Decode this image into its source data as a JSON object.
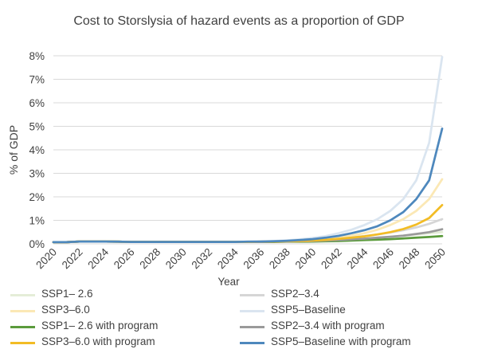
{
  "chart_data": {
    "type": "line",
    "title": "Cost to Storslysia of hazard events as a proportion of GDP",
    "xlabel": "Year",
    "ylabel": "% of GDP",
    "ylim": [
      0,
      8
    ],
    "yticks": [
      "0%",
      "1%",
      "2%",
      "3%",
      "4%",
      "5%",
      "6%",
      "7%",
      "8%"
    ],
    "xticks": [
      "2020",
      "2022",
      "2024",
      "2026",
      "2028",
      "2030",
      "2032",
      "2034",
      "2036",
      "2038",
      "2040",
      "2042",
      "2044",
      "2046",
      "2048",
      "2050"
    ],
    "grid": true,
    "legend_position": "bottom",
    "x": [
      2020,
      2021,
      2022,
      2023,
      2024,
      2025,
      2026,
      2027,
      2028,
      2029,
      2030,
      2031,
      2032,
      2033,
      2034,
      2035,
      2036,
      2037,
      2038,
      2039,
      2040,
      2041,
      2042,
      2043,
      2044,
      2045,
      2046,
      2047,
      2048,
      2049,
      2050
    ],
    "series": [
      {
        "name": "SSP1– 2.6",
        "color": "#e5edd8",
        "values": [
          0.07,
          0.07,
          0.1,
          0.1,
          0.1,
          0.09,
          0.08,
          0.08,
          0.08,
          0.08,
          0.08,
          0.08,
          0.08,
          0.08,
          0.08,
          0.08,
          0.08,
          0.09,
          0.1,
          0.11,
          0.12,
          0.14,
          0.16,
          0.19,
          0.22,
          0.26,
          0.3,
          0.35,
          0.4,
          0.45,
          0.5
        ]
      },
      {
        "name": "SSP2–3.4",
        "color": "#d6d6d6",
        "values": [
          0.07,
          0.07,
          0.1,
          0.1,
          0.1,
          0.09,
          0.08,
          0.08,
          0.08,
          0.08,
          0.08,
          0.08,
          0.08,
          0.08,
          0.08,
          0.08,
          0.09,
          0.1,
          0.11,
          0.13,
          0.15,
          0.18,
          0.22,
          0.27,
          0.33,
          0.4,
          0.48,
          0.58,
          0.7,
          0.85,
          1.05
        ]
      },
      {
        "name": "SSP3–6.0",
        "color": "#fbe8b5",
        "values": [
          0.07,
          0.07,
          0.1,
          0.1,
          0.1,
          0.09,
          0.08,
          0.08,
          0.08,
          0.08,
          0.08,
          0.08,
          0.08,
          0.08,
          0.08,
          0.08,
          0.09,
          0.1,
          0.12,
          0.14,
          0.17,
          0.21,
          0.27,
          0.35,
          0.45,
          0.6,
          0.8,
          1.05,
          1.4,
          1.9,
          2.75
        ]
      },
      {
        "name": "SSP5–Baseline",
        "color": "#dae5f0",
        "values": [
          0.07,
          0.07,
          0.1,
          0.1,
          0.1,
          0.09,
          0.08,
          0.08,
          0.08,
          0.08,
          0.08,
          0.08,
          0.08,
          0.08,
          0.08,
          0.09,
          0.1,
          0.12,
          0.15,
          0.19,
          0.25,
          0.33,
          0.45,
          0.6,
          0.8,
          1.05,
          1.4,
          1.9,
          2.7,
          4.3,
          7.95
        ]
      },
      {
        "name": "SSP1– 2.6 with program",
        "color": "#5b9b3c",
        "values": [
          0.07,
          0.07,
          0.1,
          0.1,
          0.1,
          0.09,
          0.08,
          0.08,
          0.08,
          0.08,
          0.08,
          0.08,
          0.08,
          0.08,
          0.08,
          0.08,
          0.08,
          0.08,
          0.09,
          0.09,
          0.1,
          0.11,
          0.12,
          0.14,
          0.16,
          0.18,
          0.2,
          0.23,
          0.26,
          0.29,
          0.33
        ]
      },
      {
        "name": "SSP2–3.4 with program",
        "color": "#9a9a9a",
        "values": [
          0.07,
          0.07,
          0.1,
          0.1,
          0.1,
          0.09,
          0.08,
          0.08,
          0.08,
          0.08,
          0.08,
          0.08,
          0.08,
          0.08,
          0.08,
          0.08,
          0.08,
          0.09,
          0.1,
          0.11,
          0.12,
          0.14,
          0.16,
          0.19,
          0.22,
          0.26,
          0.3,
          0.35,
          0.42,
          0.5,
          0.62
        ]
      },
      {
        "name": "SSP3–6.0 with program",
        "color": "#f2bc25",
        "values": [
          0.07,
          0.07,
          0.1,
          0.1,
          0.1,
          0.09,
          0.08,
          0.08,
          0.08,
          0.08,
          0.08,
          0.08,
          0.08,
          0.08,
          0.08,
          0.08,
          0.09,
          0.1,
          0.11,
          0.12,
          0.14,
          0.17,
          0.21,
          0.26,
          0.32,
          0.4,
          0.5,
          0.63,
          0.82,
          1.1,
          1.65
        ]
      },
      {
        "name": "SSP5–Baseline with program",
        "color": "#4e88bd",
        "values": [
          0.07,
          0.07,
          0.1,
          0.1,
          0.1,
          0.09,
          0.08,
          0.08,
          0.08,
          0.08,
          0.08,
          0.08,
          0.08,
          0.08,
          0.08,
          0.09,
          0.1,
          0.11,
          0.13,
          0.16,
          0.2,
          0.26,
          0.34,
          0.45,
          0.58,
          0.75,
          1.0,
          1.35,
          1.9,
          2.7,
          4.9
        ]
      }
    ]
  }
}
